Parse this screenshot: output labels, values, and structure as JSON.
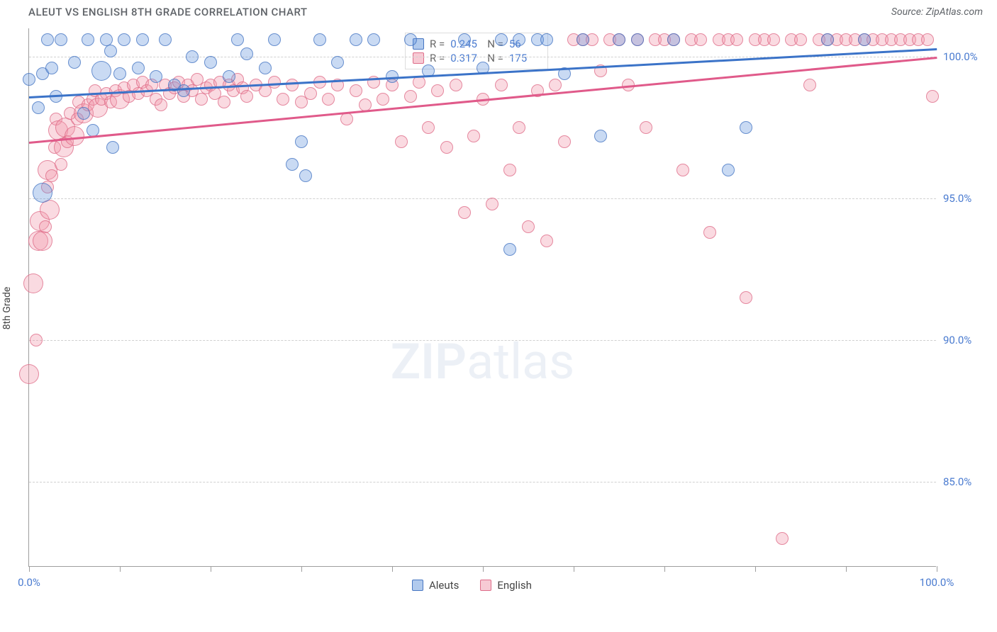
{
  "title": "ALEUT VS ENGLISH 8TH GRADE CORRELATION CHART",
  "source": "Source: ZipAtlas.com",
  "ylabel": "8th Grade",
  "watermark_bold": "ZIP",
  "watermark_light": "atlas",
  "chart": {
    "type": "scatter",
    "xlim": [
      0,
      100
    ],
    "ylim": [
      82,
      101
    ],
    "x_ticks": [
      0,
      10,
      20,
      30,
      40,
      50,
      60,
      70,
      80,
      90,
      100
    ],
    "x_labels_shown": {
      "0": "0.0%",
      "100": "100.0%"
    },
    "y_ticks": [
      85,
      90,
      95,
      100
    ],
    "y_labels": {
      "85": "85.0%",
      "90": "90.0%",
      "95": "95.0%",
      "100": "100.0%"
    },
    "grid_color": "#d0d0d0",
    "axis_color": "#9e9e9e",
    "tick_label_color": "#4a7bd0",
    "background_color": "#ffffff",
    "marker_radius": 9,
    "marker_radius_large": 14,
    "series": [
      {
        "name": "Aleuts",
        "color_fill": "rgba(100,150,220,0.35)",
        "color_stroke": "rgba(60,110,190,0.7)",
        "R": 0.245,
        "N": 56,
        "trend": {
          "y_at_x0": 98.6,
          "y_at_x100": 100.3,
          "line_color": "#3b73c8",
          "line_width": 3
        },
        "points": [
          [
            0,
            99.2
          ],
          [
            1,
            98.2
          ],
          [
            1.5,
            95.2,
            "L"
          ],
          [
            1.5,
            99.4
          ],
          [
            2,
            100.6
          ],
          [
            2.5,
            99.6
          ],
          [
            3,
            98.6
          ],
          [
            3.5,
            100.6
          ],
          [
            5,
            99.8
          ],
          [
            6,
            98.0
          ],
          [
            6.5,
            100.6
          ],
          [
            7,
            97.4
          ],
          [
            8,
            99.5,
            "L"
          ],
          [
            8.5,
            100.6
          ],
          [
            9,
            100.2
          ],
          [
            9.2,
            96.8
          ],
          [
            10,
            99.4
          ],
          [
            10.5,
            100.6
          ],
          [
            12,
            99.6
          ],
          [
            12.5,
            100.6
          ],
          [
            14,
            99.3
          ],
          [
            15,
            100.6
          ],
          [
            16,
            99.0
          ],
          [
            17,
            98.8
          ],
          [
            18,
            100.0
          ],
          [
            20,
            99.8
          ],
          [
            22,
            99.3
          ],
          [
            23,
            100.6
          ],
          [
            24,
            100.1
          ],
          [
            26,
            99.6
          ],
          [
            27,
            100.6
          ],
          [
            29,
            96.2
          ],
          [
            30,
            97.0
          ],
          [
            30.5,
            95.8
          ],
          [
            32,
            100.6
          ],
          [
            34,
            99.8
          ],
          [
            36,
            100.6
          ],
          [
            38,
            100.6
          ],
          [
            40,
            99.3
          ],
          [
            42,
            100.6
          ],
          [
            44,
            99.5
          ],
          [
            48,
            100.6
          ],
          [
            50,
            99.6
          ],
          [
            52,
            100.6
          ],
          [
            53,
            93.2
          ],
          [
            54,
            100.6
          ],
          [
            56,
            100.6
          ],
          [
            57,
            100.6
          ],
          [
            59,
            99.4
          ],
          [
            61,
            100.6
          ],
          [
            63,
            97.2
          ],
          [
            65,
            100.6
          ],
          [
            67,
            100.6
          ],
          [
            71,
            100.6
          ],
          [
            77,
            96.0
          ],
          [
            79,
            97.5
          ],
          [
            88,
            100.6
          ],
          [
            92,
            100.6
          ]
        ]
      },
      {
        "name": "English",
        "color_fill": "rgba(240,150,170,0.35)",
        "color_stroke": "rgba(220,100,130,0.7)",
        "R": 0.317,
        "N": 175,
        "trend": {
          "y_at_x0": 97.0,
          "y_at_x100": 100.0,
          "line_color": "#e05a8a",
          "line_width": 3
        },
        "points": [
          [
            0,
            88.8,
            "L"
          ],
          [
            0.5,
            92.0,
            "L"
          ],
          [
            0.8,
            90.0
          ],
          [
            1,
            93.5,
            "L"
          ],
          [
            1.2,
            94.2,
            "L"
          ],
          [
            1.5,
            93.5,
            "L"
          ],
          [
            1.8,
            94.0
          ],
          [
            2,
            96.0,
            "L"
          ],
          [
            2,
            95.4
          ],
          [
            2.3,
            94.6,
            "L"
          ],
          [
            2.5,
            95.8
          ],
          [
            2.8,
            96.8
          ],
          [
            3,
            97.8
          ],
          [
            3.2,
            97.4,
            "L"
          ],
          [
            3.5,
            96.2
          ],
          [
            3.8,
            96.8,
            "L"
          ],
          [
            4,
            97.5,
            "L"
          ],
          [
            4.2,
            97.0
          ],
          [
            4.5,
            98.0
          ],
          [
            5,
            97.2,
            "L"
          ],
          [
            5.3,
            97.8
          ],
          [
            5.5,
            98.4
          ],
          [
            6,
            98.0,
            "L"
          ],
          [
            6.5,
            98.3
          ],
          [
            7,
            98.5
          ],
          [
            7.3,
            98.8
          ],
          [
            7.6,
            98.2,
            "L"
          ],
          [
            8,
            98.5
          ],
          [
            8.5,
            98.7
          ],
          [
            9,
            98.4
          ],
          [
            9.5,
            98.8
          ],
          [
            10,
            98.5,
            "L"
          ],
          [
            10.5,
            98.9
          ],
          [
            11,
            98.6
          ],
          [
            11.5,
            99.0
          ],
          [
            12,
            98.7
          ],
          [
            12.5,
            99.1
          ],
          [
            13,
            98.8
          ],
          [
            13.5,
            99.0
          ],
          [
            14,
            98.5
          ],
          [
            14.5,
            98.3
          ],
          [
            15,
            99.0
          ],
          [
            15.5,
            98.7
          ],
          [
            16,
            98.9
          ],
          [
            16.5,
            99.1
          ],
          [
            17,
            98.6
          ],
          [
            17.5,
            99.0
          ],
          [
            18,
            98.8
          ],
          [
            18.5,
            99.2
          ],
          [
            19,
            98.5
          ],
          [
            19.5,
            98.9
          ],
          [
            20,
            99.0
          ],
          [
            20.5,
            98.7
          ],
          [
            21,
            99.1
          ],
          [
            21.5,
            98.4
          ],
          [
            22,
            99.0
          ],
          [
            22.5,
            98.8
          ],
          [
            23,
            99.2
          ],
          [
            23.5,
            98.9
          ],
          [
            24,
            98.6
          ],
          [
            25,
            99.0
          ],
          [
            26,
            98.8
          ],
          [
            27,
            99.1
          ],
          [
            28,
            98.5
          ],
          [
            29,
            99.0
          ],
          [
            30,
            98.4
          ],
          [
            31,
            98.7
          ],
          [
            32,
            99.1
          ],
          [
            33,
            98.5
          ],
          [
            34,
            99.0
          ],
          [
            35,
            97.8
          ],
          [
            36,
            98.8
          ],
          [
            37,
            98.3
          ],
          [
            38,
            99.1
          ],
          [
            39,
            98.5
          ],
          [
            40,
            99.0
          ],
          [
            41,
            97.0
          ],
          [
            42,
            98.6
          ],
          [
            43,
            99.1
          ],
          [
            44,
            97.5
          ],
          [
            45,
            98.8
          ],
          [
            46,
            96.8
          ],
          [
            47,
            99.0
          ],
          [
            48,
            94.5
          ],
          [
            49,
            97.2
          ],
          [
            50,
            98.5
          ],
          [
            51,
            94.8
          ],
          [
            52,
            99.0
          ],
          [
            53,
            96.0
          ],
          [
            54,
            97.5
          ],
          [
            55,
            94.0
          ],
          [
            56,
            98.8
          ],
          [
            57,
            93.5
          ],
          [
            58,
            99.0
          ],
          [
            59,
            97.0
          ],
          [
            60,
            100.6
          ],
          [
            61,
            100.6
          ],
          [
            62,
            100.6
          ],
          [
            63,
            99.5
          ],
          [
            64,
            100.6
          ],
          [
            65,
            100.6
          ],
          [
            66,
            99.0
          ],
          [
            67,
            100.6
          ],
          [
            68,
            97.5
          ],
          [
            69,
            100.6
          ],
          [
            70,
            100.6
          ],
          [
            71,
            100.6
          ],
          [
            72,
            96.0
          ],
          [
            73,
            100.6
          ],
          [
            74,
            100.6
          ],
          [
            75,
            93.8
          ],
          [
            76,
            100.6
          ],
          [
            77,
            100.6
          ],
          [
            78,
            100.6
          ],
          [
            79,
            91.5
          ],
          [
            80,
            100.6
          ],
          [
            81,
            100.6
          ],
          [
            82,
            100.6
          ],
          [
            83,
            83.0
          ],
          [
            84,
            100.6
          ],
          [
            85,
            100.6
          ],
          [
            86,
            99.0
          ],
          [
            87,
            100.6
          ],
          [
            88,
            100.6
          ],
          [
            89,
            100.6
          ],
          [
            90,
            100.6
          ],
          [
            91,
            100.6
          ],
          [
            92,
            100.6
          ],
          [
            93,
            100.6
          ],
          [
            94,
            100.6
          ],
          [
            95,
            100.6
          ],
          [
            96,
            100.6
          ],
          [
            97,
            100.6
          ],
          [
            98,
            100.6
          ],
          [
            99,
            100.6
          ],
          [
            99.5,
            98.6
          ]
        ]
      }
    ],
    "legend_bottom": [
      {
        "swatch": "blue",
        "label": "Aleuts"
      },
      {
        "swatch": "pink",
        "label": "English"
      }
    ]
  }
}
